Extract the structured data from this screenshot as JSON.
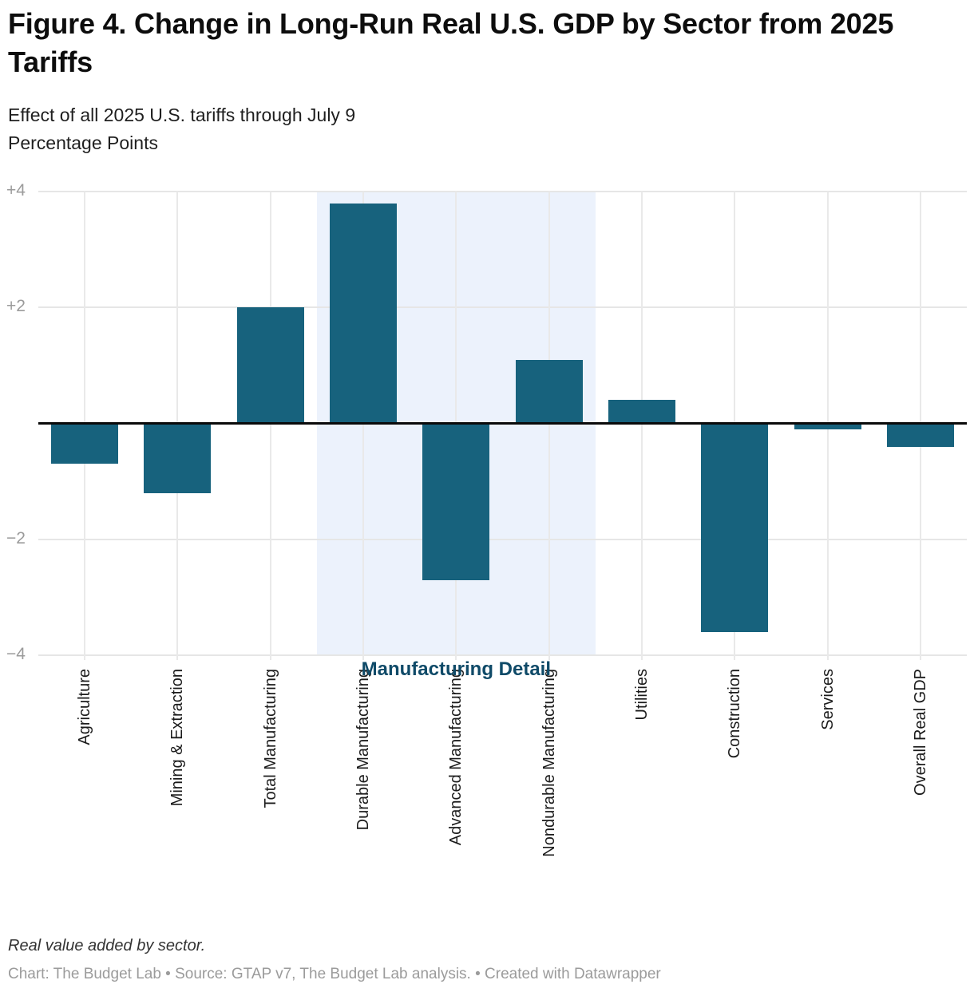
{
  "header": {
    "title": "Figure 4. Change in Long-Run Real U.S. GDP by Sector from 2025 Tariffs",
    "subtitle_line1": "Effect of all 2025 U.S. tariffs through July 9",
    "subtitle_line2": "Percentage Points"
  },
  "chart_data": {
    "type": "bar",
    "title": "Figure 4. Change in Long-Run Real U.S. GDP by Sector from 2025 Tariffs",
    "subtitle": "Effect of all 2025 U.S. tariffs through July 9",
    "ylabel": "Percentage Points",
    "xlabel": "",
    "categories": [
      "Agriculture",
      "Mining & Extraction",
      "Total Manufacturing",
      "Durable Manufacturing",
      "Advanced Manufacturing",
      "Nondurable Manufacturing",
      "Utilities",
      "Construction",
      "Services",
      "Overall Real GDP"
    ],
    "values": [
      -0.7,
      -1.2,
      2.0,
      3.8,
      -2.7,
      1.1,
      0.4,
      -3.6,
      -0.1,
      -0.4
    ],
    "ylim": [
      -4,
      4
    ],
    "yticks": [
      {
        "value": 4,
        "label": "+4"
      },
      {
        "value": 2,
        "label": "+2"
      },
      {
        "value": -2,
        "label": "−2"
      },
      {
        "value": -4,
        "label": "−4"
      }
    ],
    "grid": true,
    "legend_position": "none",
    "bar_color": "#17627D",
    "zero_axis_color": "#0a0a0a",
    "gridline_color": "#e6e6e6",
    "tick_label_color": "#9b9b9b",
    "highlight_region": {
      "label": "Manufacturing Detail",
      "from_index": 3,
      "to_index": 5,
      "fill": "#ECF2FC",
      "label_color": "#0F4A68"
    }
  },
  "footer": {
    "note": "Real value added by sector.",
    "attribution": "Chart: The Budget Lab • Source: GTAP v7, The Budget Lab analysis. • Created with Datawrapper"
  }
}
